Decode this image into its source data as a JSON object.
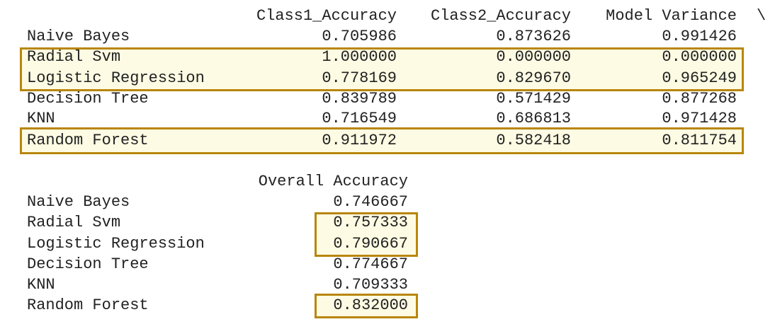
{
  "table1": {
    "columns": [
      "Class1_Accuracy",
      "Class2_Accuracy",
      "Model Variance"
    ],
    "continuation_marker": "\\",
    "rows": [
      {
        "model": "Naive Bayes",
        "values": [
          "0.705986",
          "0.873626",
          "0.991426"
        ]
      },
      {
        "model": "Radial Svm",
        "values": [
          "1.000000",
          "0.000000",
          "0.000000"
        ]
      },
      {
        "model": "Logistic Regression",
        "values": [
          "0.778169",
          "0.829670",
          "0.965249"
        ]
      },
      {
        "model": "Decision Tree",
        "values": [
          "0.839789",
          "0.571429",
          "0.877268"
        ]
      },
      {
        "model": "KNN",
        "values": [
          "0.716549",
          "0.686813",
          "0.971428"
        ]
      },
      {
        "model": "Random Forest",
        "values": [
          "0.911972",
          "0.582418",
          "0.811754"
        ]
      }
    ]
  },
  "table2": {
    "column": "Overall Accuracy",
    "rows": [
      {
        "model": "Naive Bayes",
        "value": "0.746667"
      },
      {
        "model": "Radial Svm",
        "value": "0.757333"
      },
      {
        "model": "Logistic Regression",
        "value": "0.790667"
      },
      {
        "model": "Decision Tree",
        "value": "0.774667"
      },
      {
        "model": "KNN",
        "value": "0.709333"
      },
      {
        "model": "Random Forest",
        "value": "0.832000"
      }
    ]
  },
  "colors": {
    "highlight_border": "#b8860b",
    "highlight_fill": "#fdfbe3",
    "text": "#222222"
  }
}
